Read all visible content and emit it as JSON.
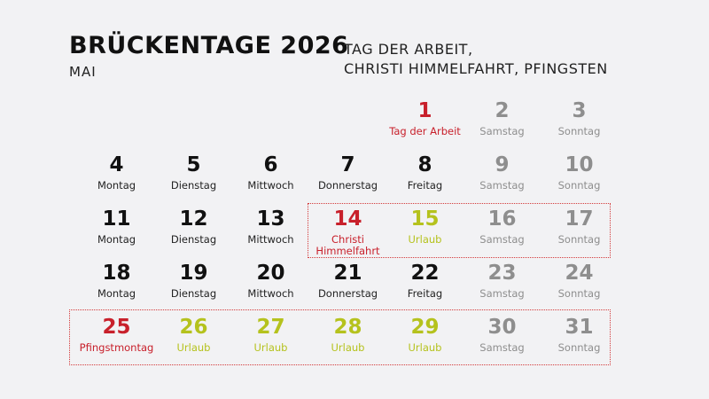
{
  "header": {
    "title": "BRÜCKENTAGE 2026",
    "month": "MAI",
    "subtitle_line1": "TAG DER ARBEIT,",
    "subtitle_line2": "CHRISTI HIMMELFAHRT, PFINGSTEN"
  },
  "colors": {
    "holiday": "#c8202b",
    "vacation": "#b5c21d",
    "weekend": "#8e8e8e",
    "workday": "#111111"
  },
  "days": [
    {
      "num": "",
      "label": "",
      "type": "empty"
    },
    {
      "num": "",
      "label": "",
      "type": "empty"
    },
    {
      "num": "",
      "label": "",
      "type": "empty"
    },
    {
      "num": "",
      "label": "",
      "type": "empty"
    },
    {
      "num": "1",
      "label": "Tag der Arbeit",
      "type": "red"
    },
    {
      "num": "2",
      "label": "Samstag",
      "type": "gray"
    },
    {
      "num": "3",
      "label": "Sonntag",
      "type": "gray"
    },
    {
      "num": "4",
      "label": "Montag",
      "type": "black"
    },
    {
      "num": "5",
      "label": "Dienstag",
      "type": "black"
    },
    {
      "num": "6",
      "label": "Mittwoch",
      "type": "black"
    },
    {
      "num": "7",
      "label": "Donnerstag",
      "type": "black"
    },
    {
      "num": "8",
      "label": "Freitag",
      "type": "black"
    },
    {
      "num": "9",
      "label": "Samstag",
      "type": "gray"
    },
    {
      "num": "10",
      "label": "Sonntag",
      "type": "gray"
    },
    {
      "num": "11",
      "label": "Montag",
      "type": "black"
    },
    {
      "num": "12",
      "label": "Dienstag",
      "type": "black"
    },
    {
      "num": "13",
      "label": "Mittwoch",
      "type": "black"
    },
    {
      "num": "14",
      "label": "Christi Himmelfahrt",
      "type": "red"
    },
    {
      "num": "15",
      "label": "Urlaub",
      "type": "green"
    },
    {
      "num": "16",
      "label": "Samstag",
      "type": "gray"
    },
    {
      "num": "17",
      "label": "Sonntag",
      "type": "gray"
    },
    {
      "num": "18",
      "label": "Montag",
      "type": "black"
    },
    {
      "num": "19",
      "label": "Dienstag",
      "type": "black"
    },
    {
      "num": "20",
      "label": "Mittwoch",
      "type": "black"
    },
    {
      "num": "21",
      "label": "Donnerstag",
      "type": "black"
    },
    {
      "num": "22",
      "label": "Freitag",
      "type": "black"
    },
    {
      "num": "23",
      "label": "Samstag",
      "type": "gray"
    },
    {
      "num": "24",
      "label": "Sonntag",
      "type": "gray"
    },
    {
      "num": "25",
      "label": "Pfingstmontag",
      "type": "red"
    },
    {
      "num": "26",
      "label": "Urlaub",
      "type": "green"
    },
    {
      "num": "27",
      "label": "Urlaub",
      "type": "green"
    },
    {
      "num": "28",
      "label": "Urlaub",
      "type": "green"
    },
    {
      "num": "29",
      "label": "Urlaub",
      "type": "green"
    },
    {
      "num": "30",
      "label": "Samstag",
      "type": "gray"
    },
    {
      "num": "31",
      "label": "Sonntag",
      "type": "gray"
    }
  ]
}
